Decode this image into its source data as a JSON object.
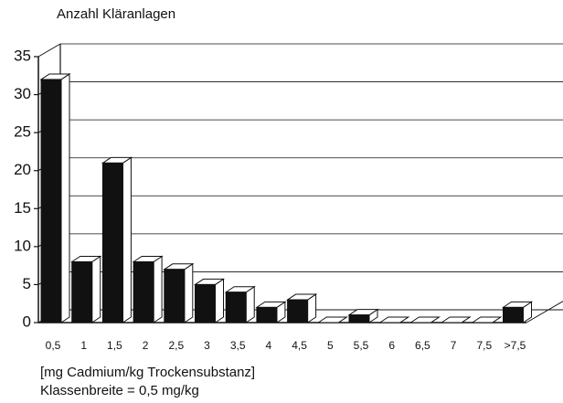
{
  "chart_data": {
    "type": "bar3d",
    "ylabel": "Anzahl Kläranlagen",
    "xlabel": [
      "[mg Cadmium/kg Trockensubstanz]",
      "Klassenbreite = 0,5 mg/kg"
    ],
    "categories": [
      "0,5",
      "1",
      "1,5",
      "2",
      "2,5",
      "3",
      "3,5",
      "4",
      "4,5",
      "5",
      "5,5",
      "6",
      "6,5",
      "7",
      "7,5",
      ">7,5"
    ],
    "values": [
      32,
      8,
      21,
      8,
      7,
      5,
      4,
      2,
      3,
      0,
      1,
      0,
      0,
      0,
      0,
      2
    ],
    "color": "#111111",
    "ylim": [
      0,
      35
    ],
    "yticks": [
      0,
      5,
      10,
      15,
      20,
      25,
      30,
      35
    ],
    "grid": true
  }
}
